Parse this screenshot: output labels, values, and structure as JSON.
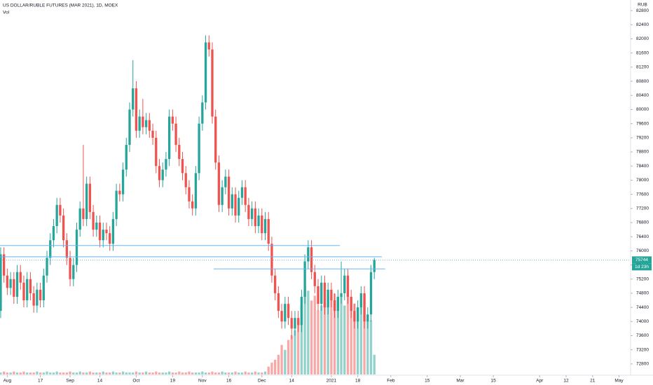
{
  "chart_data": {
    "type": "candlestick",
    "title": "US DOLLAR/RUBLE FUTURES (MAR 2021), 1D, MOEX",
    "volume_label": "Vol",
    "currency": "RUB",
    "countdown": "1d 23h",
    "up_color": "#26a69a",
    "down_color": "#ef5350",
    "line_color": "#64b5f6",
    "grid": false,
    "xlim": [
      -0.2,
      190.5
    ],
    "ylim": [
      72500,
      83100
    ],
    "volume_ylim": [
      0,
      380
    ],
    "xticks": [
      {
        "value": 2,
        "label": "Aug"
      },
      {
        "value": 12,
        "label": "17"
      },
      {
        "value": 21,
        "label": "Sep"
      },
      {
        "value": 30,
        "label": "14"
      },
      {
        "value": 41,
        "label": "Oct"
      },
      {
        "value": 52,
        "label": "19"
      },
      {
        "value": 61,
        "label": "Nov"
      },
      {
        "value": 69,
        "label": "16"
      },
      {
        "value": 79,
        "label": "Dec"
      },
      {
        "value": 88,
        "label": "14"
      },
      {
        "value": 100,
        "label": "2021"
      },
      {
        "value": 108,
        "label": "18"
      },
      {
        "value": 118,
        "label": "Feb"
      },
      {
        "value": 129,
        "label": "15"
      },
      {
        "value": 139,
        "label": "Mar"
      },
      {
        "value": 149,
        "label": "15"
      },
      {
        "value": 163,
        "label": "Apr"
      },
      {
        "value": 171,
        "label": "12"
      },
      {
        "value": 179,
        "label": "21"
      },
      {
        "value": 187,
        "label": "May"
      }
    ],
    "yticks": [
      72800,
      73200,
      73600,
      74000,
      74400,
      74800,
      75200,
      75600,
      76000,
      76400,
      76800,
      77200,
      77600,
      78000,
      78400,
      78800,
      79200,
      79600,
      80000,
      80400,
      80800,
      81200,
      81600,
      82000,
      82400,
      82800
    ],
    "lines": [
      {
        "price": 76150,
        "from": -0.2,
        "to": 102.6
      },
      {
        "price": 75830,
        "from": -0.2,
        "to": 115.3
      },
      {
        "price": 75490,
        "from": 64.4,
        "to": 116.3
      }
    ],
    "open": [
      74300,
      75900,
      75300,
      74950,
      75200,
      74700,
      75400,
      75100,
      74600,
      75200,
      74800,
      74450,
      74900,
      74600,
      75300,
      75800,
      76300,
      76700,
      77300,
      77000,
      76300,
      75800,
      75200,
      75600,
      76600,
      77200,
      76900,
      77900,
      77100,
      76600,
      76800,
      76300,
      76600,
      76500,
      76200,
      76900,
      77700,
      77600,
      78300,
      79000,
      80000,
      80600,
      79400,
      79800,
      79500,
      79700,
      79400,
      79200,
      78400,
      78000,
      78300,
      78600,
      79800,
      79600,
      79000,
      78600,
      78200,
      77800,
      77400,
      77200,
      78200,
      79600,
      80200,
      81900,
      81700,
      79800,
      78500,
      77300,
      77800,
      78100,
      77200,
      77600,
      77000,
      77500,
      77800,
      77300,
      76900,
      77200,
      76700,
      77000,
      76500,
      76900,
      76200,
      75300,
      74800,
      74300,
      74000,
      74500,
      74100,
      73800,
      74100,
      73900,
      74700,
      75700,
      76100,
      75400,
      75000,
      74500,
      75100,
      74400,
      74900,
      74600,
      74300,
      74700,
      74800,
      75300,
      74700,
      74300,
      74000,
      74400,
      74800,
      74000,
      74200,
      75400
    ],
    "high": [
      76100,
      76100,
      75500,
      75400,
      75400,
      75600,
      75600,
      75300,
      75400,
      75400,
      75000,
      75100,
      75100,
      75500,
      76000,
      76500,
      76900,
      77500,
      77500,
      77200,
      76500,
      76000,
      75800,
      76800,
      77400,
      79000,
      78100,
      78100,
      77300,
      77000,
      77000,
      76800,
      76800,
      76700,
      77100,
      77900,
      77900,
      78500,
      79200,
      80200,
      81400,
      80800,
      80000,
      80300,
      79900,
      79900,
      79600,
      79400,
      78600,
      78500,
      78800,
      80000,
      80000,
      79800,
      79200,
      78800,
      78400,
      78000,
      77600,
      78400,
      79800,
      80400,
      82100,
      82100,
      81900,
      80000,
      78700,
      78000,
      78300,
      78300,
      77800,
      77800,
      77700,
      78000,
      78000,
      77500,
      77400,
      77400,
      77200,
      77200,
      77100,
      77100,
      76400,
      75500,
      75000,
      74500,
      74700,
      74700,
      74300,
      74300,
      74300,
      74900,
      75900,
      76300,
      76300,
      75600,
      75200,
      75300,
      75300,
      75100,
      75100,
      74800,
      74900,
      75700,
      75500,
      75500,
      74900,
      74500,
      74600,
      75000,
      75000,
      74400,
      75600,
      75800
    ],
    "low": [
      74100,
      75100,
      74750,
      74750,
      74500,
      74500,
      74900,
      74400,
      74400,
      74600,
      74250,
      74250,
      74400,
      74400,
      75100,
      75600,
      76100,
      76500,
      76800,
      76100,
      75600,
      75000,
      75000,
      75400,
      76400,
      76700,
      76700,
      76900,
      76400,
      76400,
      76100,
      76100,
      76300,
      76000,
      76000,
      76700,
      77400,
      77400,
      78100,
      78800,
      79800,
      79200,
      79200,
      79300,
      79300,
      79200,
      79000,
      78200,
      77800,
      77800,
      78100,
      78400,
      79400,
      78800,
      78400,
      78000,
      77600,
      77200,
      77000,
      77000,
      78000,
      79400,
      80000,
      81500,
      79600,
      78300,
      77100,
      77100,
      77600,
      77000,
      77000,
      76800,
      76800,
      77300,
      77100,
      76700,
      76700,
      76500,
      76500,
      76300,
      76300,
      76000,
      75100,
      74600,
      74100,
      73800,
      73800,
      73900,
      73500,
      73600,
      73700,
      73700,
      74500,
      75500,
      75200,
      74800,
      74300,
      74300,
      74200,
      74200,
      74400,
      74100,
      74100,
      74500,
      74600,
      74500,
      74100,
      73800,
      73800,
      74200,
      73800,
      73800,
      74000,
      75200
    ],
    "close": [
      75900,
      75300,
      74950,
      75200,
      74700,
      75400,
      75100,
      74600,
      75200,
      74800,
      74450,
      74900,
      74600,
      75300,
      75800,
      76300,
      76700,
      77300,
      77000,
      76300,
      75800,
      75200,
      75600,
      76600,
      77200,
      76900,
      77900,
      77100,
      76600,
      76800,
      76300,
      76600,
      76500,
      76200,
      76900,
      77700,
      77600,
      78300,
      79000,
      80000,
      80600,
      79400,
      79800,
      79500,
      79700,
      79400,
      79200,
      78400,
      78000,
      78300,
      78600,
      79800,
      79600,
      79000,
      78600,
      78200,
      77800,
      77400,
      77200,
      78200,
      79600,
      80200,
      81900,
      81700,
      79800,
      78500,
      77300,
      77800,
      78100,
      77200,
      77600,
      77000,
      77500,
      77800,
      77300,
      76900,
      77200,
      76700,
      77000,
      76500,
      76900,
      76200,
      75300,
      74800,
      74300,
      74000,
      74500,
      74100,
      73800,
      74100,
      73900,
      74700,
      75700,
      76100,
      75400,
      75000,
      74500,
      75100,
      74400,
      74900,
      74600,
      74300,
      74700,
      74800,
      75300,
      74700,
      74300,
      74000,
      74400,
      74800,
      74000,
      74200,
      75400,
      75744
    ],
    "volume": [
      2,
      3,
      2,
      2,
      3,
      2,
      2,
      3,
      2,
      2,
      2,
      3,
      2,
      2,
      3,
      2,
      2,
      3,
      2,
      2,
      2,
      3,
      2,
      2,
      3,
      2,
      2,
      3,
      2,
      2,
      2,
      3,
      2,
      2,
      3,
      2,
      2,
      3,
      2,
      2,
      2,
      3,
      2,
      2,
      3,
      2,
      2,
      3,
      2,
      2,
      2,
      3,
      2,
      2,
      3,
      2,
      2,
      3,
      2,
      2,
      2,
      3,
      2,
      2,
      3,
      2,
      2,
      3,
      2,
      2,
      2,
      3,
      2,
      2,
      3,
      2,
      2,
      3,
      2,
      2,
      3,
      8,
      12,
      15,
      20,
      30,
      25,
      35,
      40,
      45,
      55,
      70,
      90,
      85,
      75,
      80,
      65,
      70,
      72,
      80,
      78,
      82,
      75,
      80,
      70,
      85,
      78,
      72,
      68,
      75,
      80,
      60,
      55,
      20
    ]
  }
}
